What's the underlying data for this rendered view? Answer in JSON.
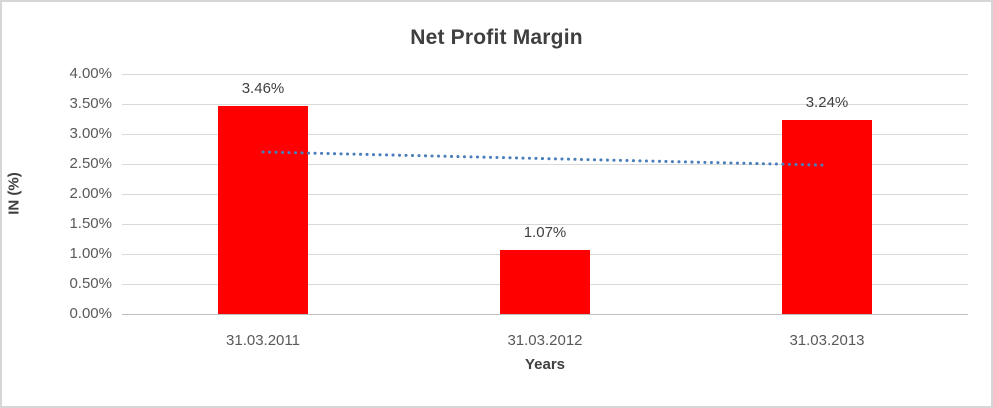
{
  "chart_data": {
    "type": "bar",
    "title": "Net Profit Margin",
    "xlabel": "Years",
    "ylabel": "IN (%)",
    "categories": [
      "31.03.2011",
      "31.03.2012",
      "31.03.2013"
    ],
    "values": [
      3.46,
      1.07,
      3.24
    ],
    "data_labels": [
      "3.46%",
      "1.07%",
      "3.24%"
    ],
    "ylim": [
      0,
      4
    ],
    "y_ticks": [
      {
        "label": "4.00%",
        "value": 4.0
      },
      {
        "label": "3.50%",
        "value": 3.5
      },
      {
        "label": "3.00%",
        "value": 3.0
      },
      {
        "label": "2.50%",
        "value": 2.5
      },
      {
        "label": "2.00%",
        "value": 2.0
      },
      {
        "label": "1.50%",
        "value": 1.5
      },
      {
        "label": "1.00%",
        "value": 1.0
      },
      {
        "label": "0.50%",
        "value": 0.5
      },
      {
        "label": "0.00%",
        "value": 0.0
      }
    ],
    "grid": true,
    "legend": "none",
    "bar_color": "#FF0000",
    "gridline_color": "#D9D9D9",
    "trendline": {
      "type": "linear",
      "style": "dotted",
      "color": "#4A7EBB",
      "start_value": 2.7,
      "end_value": 2.48
    }
  }
}
